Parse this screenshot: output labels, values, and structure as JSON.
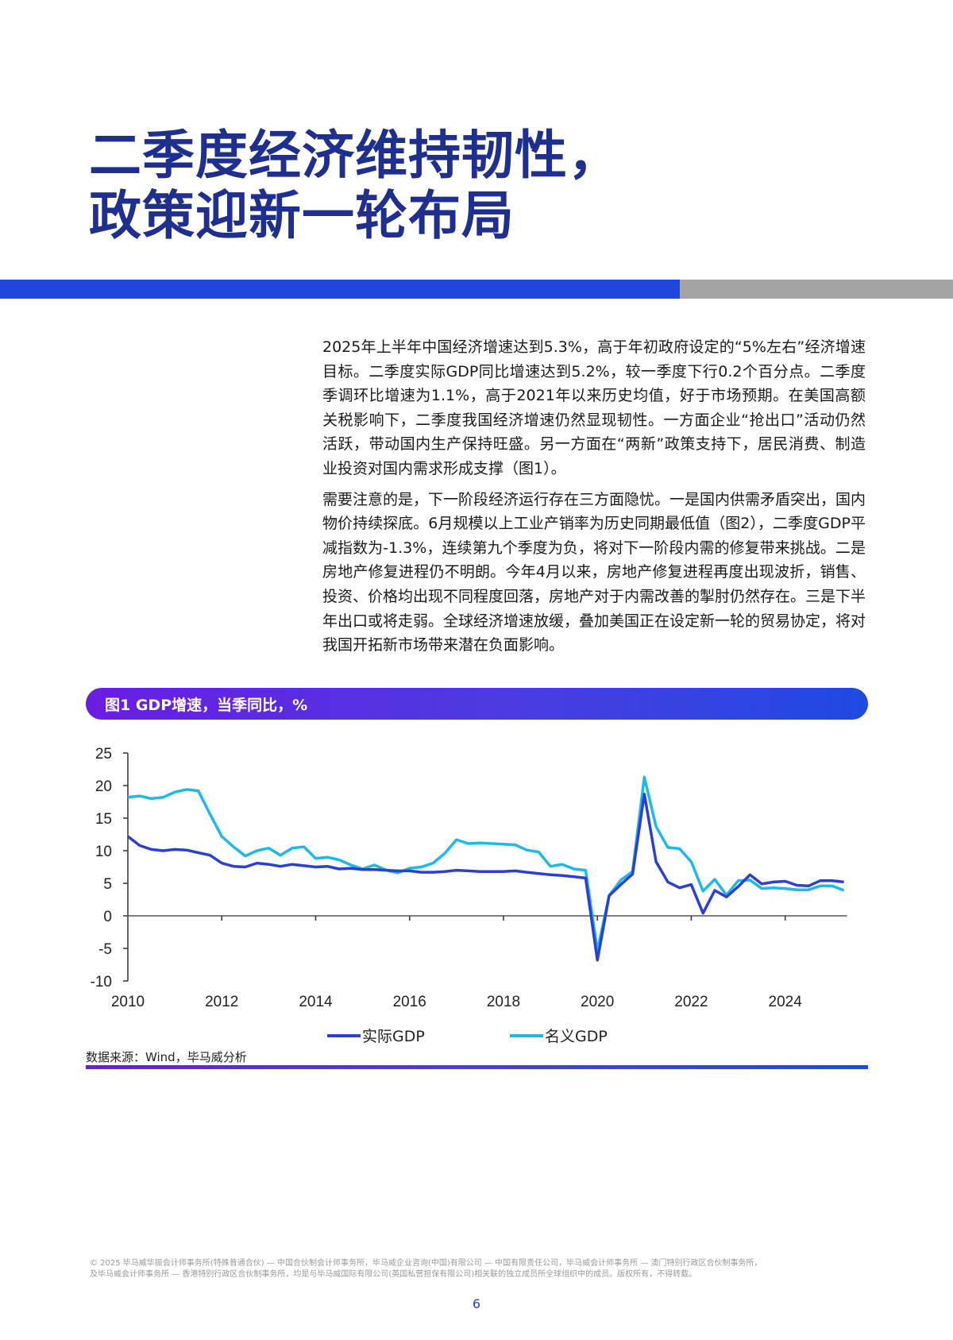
{
  "title": {
    "line1": "二季度经济维持韧性，",
    "line2": "政策迎新一轮布局"
  },
  "colors": {
    "title": "#1E2F8F",
    "band_blue": "#1E46DF",
    "band_gray": "#A4A4A4",
    "gradient_start": "#6A1DE2",
    "gradient_end": "#1E4AE2",
    "real_gdp": "#2B3FD6",
    "nominal_gdp": "#1FB8EA"
  },
  "body": {
    "paragraphs": [
      "2025年上半年中国经济增速达到5.3%，高于年初政府设定的“5%左右”经济增速目标。二季度实际GDP同比增速达到5.2%，较一季度下行0.2个百分点。二季度季调环比增速为1.1%，高于2021年以来历史均值，好于市场预期。在美国高额关税影响下，二季度我国经济增速仍然显现韧性。一方面企业“抢出口”活动仍然活跃，带动国内生产保持旺盛。另一方面在“两新”政策支持下，居民消费、制造业投资对国内需求形成支撑（图1）。",
      "需要注意的是，下一阶段经济运行存在三方面隐忧。一是国内供需矛盾突出，国内物价持续探底。6月规模以上工业产销率为历史同期最低值（图2），二季度GDP平减指数为-1.3%，连续第九个季度为负，将对下一阶段内需的修复带来挑战。二是房地产修复进程仍不明朗。今年4月以来，房地产修复进程再度出现波折，销售、投资、价格均出现不同程度回落，房地产对于内需改善的掣肘仍然存在。三是下半年出口或将走弱。全球经济增速放缓，叠加美国正在设定新一轮的贸易协定，将对我国开拓新市场带来潜在负面影响。"
    ]
  },
  "figure": {
    "title": "图1 GDP增速，当季同比，%",
    "source": "数据来源：Wind，毕马威分析"
  },
  "chart_data": {
    "type": "line",
    "title": "图1 GDP增速，当季同比，%",
    "xlabel": "",
    "ylabel": "%",
    "ylim": [
      -10,
      25
    ],
    "yticks": [
      25,
      20,
      15,
      10,
      5,
      0,
      -5,
      -10
    ],
    "xticks": [
      "2010",
      "2012",
      "2014",
      "2016",
      "2018",
      "2020",
      "2022",
      "2024"
    ],
    "grid": false,
    "legend_position": "bottom",
    "x": [
      "2010Q1",
      "2010Q2",
      "2010Q3",
      "2010Q4",
      "2011Q1",
      "2011Q2",
      "2011Q3",
      "2011Q4",
      "2012Q1",
      "2012Q2",
      "2012Q3",
      "2012Q4",
      "2013Q1",
      "2013Q2",
      "2013Q3",
      "2013Q4",
      "2014Q1",
      "2014Q2",
      "2014Q3",
      "2014Q4",
      "2015Q1",
      "2015Q2",
      "2015Q3",
      "2015Q4",
      "2016Q1",
      "2016Q2",
      "2016Q3",
      "2016Q4",
      "2017Q1",
      "2017Q2",
      "2017Q3",
      "2017Q4",
      "2018Q1",
      "2018Q2",
      "2018Q3",
      "2018Q4",
      "2019Q1",
      "2019Q2",
      "2019Q3",
      "2019Q4",
      "2020Q1",
      "2020Q2",
      "2020Q3",
      "2020Q4",
      "2021Q1",
      "2021Q2",
      "2021Q3",
      "2021Q4",
      "2022Q1",
      "2022Q2",
      "2022Q3",
      "2022Q4",
      "2023Q1",
      "2023Q2",
      "2023Q3",
      "2023Q4",
      "2024Q1",
      "2024Q2",
      "2024Q3",
      "2024Q4",
      "2025Q1",
      "2025Q2"
    ],
    "series": [
      {
        "name": "实际GDP",
        "color": "#2B3FD6",
        "values": [
          12.2,
          10.8,
          10.2,
          10.0,
          10.2,
          10.1,
          9.7,
          9.3,
          8.1,
          7.6,
          7.5,
          8.1,
          7.9,
          7.6,
          7.9,
          7.7,
          7.5,
          7.6,
          7.2,
          7.3,
          7.1,
          7.1,
          7.0,
          6.9,
          6.9,
          6.7,
          6.7,
          6.8,
          7.0,
          6.9,
          6.8,
          6.8,
          6.8,
          6.9,
          6.7,
          6.5,
          6.3,
          6.2,
          6.0,
          5.8,
          -6.8,
          3.1,
          4.8,
          6.4,
          18.7,
          8.3,
          5.2,
          4.3,
          4.8,
          0.4,
          3.9,
          2.9,
          4.5,
          6.3,
          4.9,
          5.2,
          5.3,
          4.7,
          4.6,
          5.4,
          5.4,
          5.2
        ]
      },
      {
        "name": "名义GDP",
        "color": "#1FB8EA",
        "values": [
          18.2,
          18.4,
          18.0,
          18.2,
          19.0,
          19.4,
          19.2,
          15.6,
          12.2,
          10.6,
          9.2,
          10.0,
          10.4,
          9.3,
          10.4,
          10.6,
          8.8,
          9.0,
          8.6,
          7.8,
          7.2,
          7.8,
          7.0,
          6.6,
          7.3,
          7.5,
          8.1,
          9.6,
          11.7,
          11.1,
          11.2,
          11.1,
          11.0,
          10.9,
          10.1,
          9.8,
          7.6,
          7.9,
          7.2,
          7.0,
          -5.3,
          3.1,
          5.5,
          6.8,
          21.3,
          13.7,
          10.5,
          10.3,
          8.3,
          3.8,
          5.6,
          3.2,
          5.4,
          5.5,
          4.2,
          4.3,
          4.2,
          4.0,
          4.0,
          4.6,
          4.6,
          3.9
        ]
      }
    ]
  },
  "legend": {
    "items": [
      {
        "label": "实际GDP",
        "color": "#2B3FD6"
      },
      {
        "label": "名义GDP",
        "color": "#1FB8EA"
      }
    ]
  },
  "footer": {
    "line1": "© 2025 毕马威华振会计师事务所(特殊普通合伙) — 中国合伙制会计师事务所，毕马威企业咨询(中国)有限公司 — 中国有限责任公司，毕马威会计师事务所 — 澳门特别行政区合伙制事务所，",
    "line2": "及毕马威会计师事务所 — 香港特别行政区合伙制事务所，均是与毕马威国际有限公司(英国私营担保有限公司)相关联的独立成员所全球组织中的成员。版权所有，不得转载。",
    "page_number": "6"
  }
}
